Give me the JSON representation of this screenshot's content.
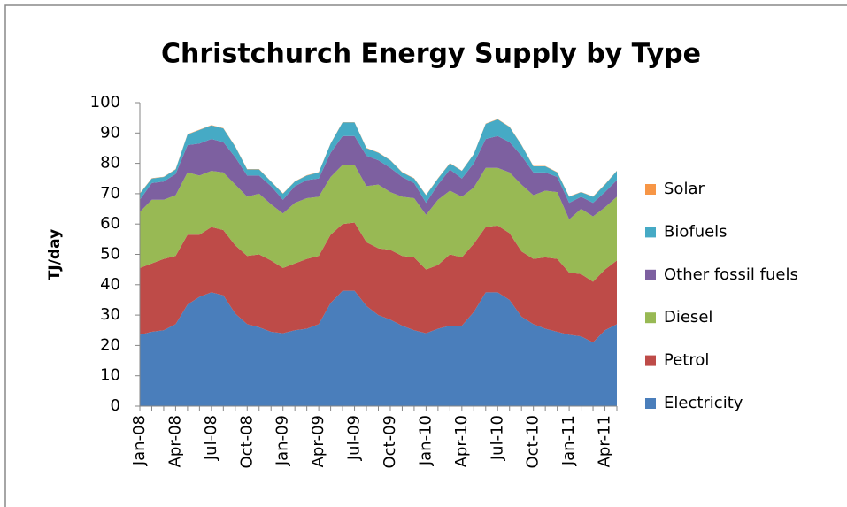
{
  "chart_data": {
    "type": "stacked_area",
    "title": "Christchurch Energy Supply by Type",
    "y_label": "TJ/day",
    "categories": [
      "Jan-08",
      null,
      null,
      "Apr-08",
      null,
      null,
      "Jul-08",
      null,
      null,
      "Oct-08",
      null,
      null,
      "Jan-09",
      null,
      null,
      "Apr-09",
      null,
      null,
      "Jul-09",
      null,
      null,
      "Oct-09",
      null,
      null,
      "Jan-10",
      null,
      null,
      "Apr-10",
      null,
      null,
      "Jul-10",
      null,
      null,
      "Oct-10",
      null,
      null,
      "Jan-11",
      null,
      null,
      "Apr-11",
      null
    ],
    "series": [
      {
        "name": "Electricity",
        "color": "#4a7ebb",
        "values": [
          23.5,
          24.5,
          25,
          27,
          33.5,
          36,
          37.5,
          36.5,
          30.5,
          27,
          26,
          24.5,
          24,
          25,
          25.5,
          27,
          34,
          38,
          38,
          33,
          30,
          28.5,
          26.5,
          25,
          24,
          25.5,
          26.5,
          26.5,
          31,
          37.5,
          37.5,
          35,
          29.5,
          27,
          25.5,
          24.5,
          23.5,
          23,
          21,
          25,
          27
        ]
      },
      {
        "name": "Petrol",
        "color": "#be4b48",
        "values": [
          22,
          22.5,
          23.5,
          22.5,
          23,
          20.5,
          21.5,
          21.5,
          22.5,
          22.5,
          24,
          23.5,
          21.5,
          22,
          23,
          22.5,
          22.5,
          22,
          22.5,
          21,
          22,
          23,
          23,
          24,
          21,
          21,
          23.5,
          22.5,
          22.5,
          21.5,
          22,
          22,
          21.5,
          21.5,
          23.5,
          24,
          20.5,
          20.5,
          20,
          20,
          21
        ]
      },
      {
        "name": "Diesel",
        "color": "#98b954",
        "values": [
          18.5,
          21,
          19.5,
          20,
          20.5,
          19.5,
          18.5,
          19,
          20,
          19.5,
          20,
          18.5,
          18,
          20,
          20,
          19.5,
          19,
          19.5,
          19,
          18.5,
          21,
          19,
          19.5,
          19.5,
          18,
          21.5,
          21,
          20,
          18.5,
          19.5,
          19,
          20,
          22,
          21,
          22,
          22,
          17.5,
          21.5,
          21.5,
          20.5,
          21
        ]
      },
      {
        "name": "Other fossil fuels",
        "color": "#7d60a0",
        "values": [
          4,
          5.5,
          6,
          7,
          9,
          10.5,
          10.5,
          10,
          9,
          7,
          6,
          6,
          4.5,
          5.5,
          6,
          6,
          8,
          9.5,
          9.5,
          10,
          8,
          8,
          6.5,
          5,
          4,
          5,
          7,
          6,
          8,
          9.5,
          10.5,
          10,
          9.5,
          7.5,
          6,
          5,
          5.5,
          4,
          4.5,
          5,
          5.5
        ]
      },
      {
        "name": "Biofuels",
        "color": "#46aac5",
        "values": [
          2,
          1.5,
          1.5,
          1.5,
          3.5,
          4.5,
          4.5,
          4.5,
          3.5,
          2,
          2,
          1.5,
          2,
          1.5,
          1.5,
          2,
          3,
          4.5,
          4.5,
          2.5,
          2.5,
          2.5,
          1.5,
          1.5,
          2.5,
          2,
          2,
          2.5,
          3,
          5,
          5.5,
          5,
          3.5,
          2,
          2,
          1.5,
          2,
          1.5,
          2,
          2.5,
          3
        ]
      },
      {
        "name": "Solar",
        "color": "#f79646",
        "values": [
          0.1,
          0.1,
          0.1,
          0.1,
          0.1,
          0.1,
          0.1,
          0.1,
          0.1,
          0.1,
          0.1,
          0.1,
          0.1,
          0.1,
          0.1,
          0.1,
          0.1,
          0.1,
          0.1,
          0.1,
          0.1,
          0.1,
          0.1,
          0.1,
          0.1,
          0.1,
          0.1,
          0.1,
          0.1,
          0.1,
          0.1,
          0.1,
          0.1,
          0.1,
          0.1,
          0.1,
          0.1,
          0.1,
          0.1,
          0.1,
          0.1
        ]
      }
    ],
    "ylim": [
      0,
      100
    ],
    "yticks": [
      0,
      10,
      20,
      30,
      40,
      50,
      60,
      70,
      80,
      90,
      100
    ],
    "legend": "right"
  }
}
